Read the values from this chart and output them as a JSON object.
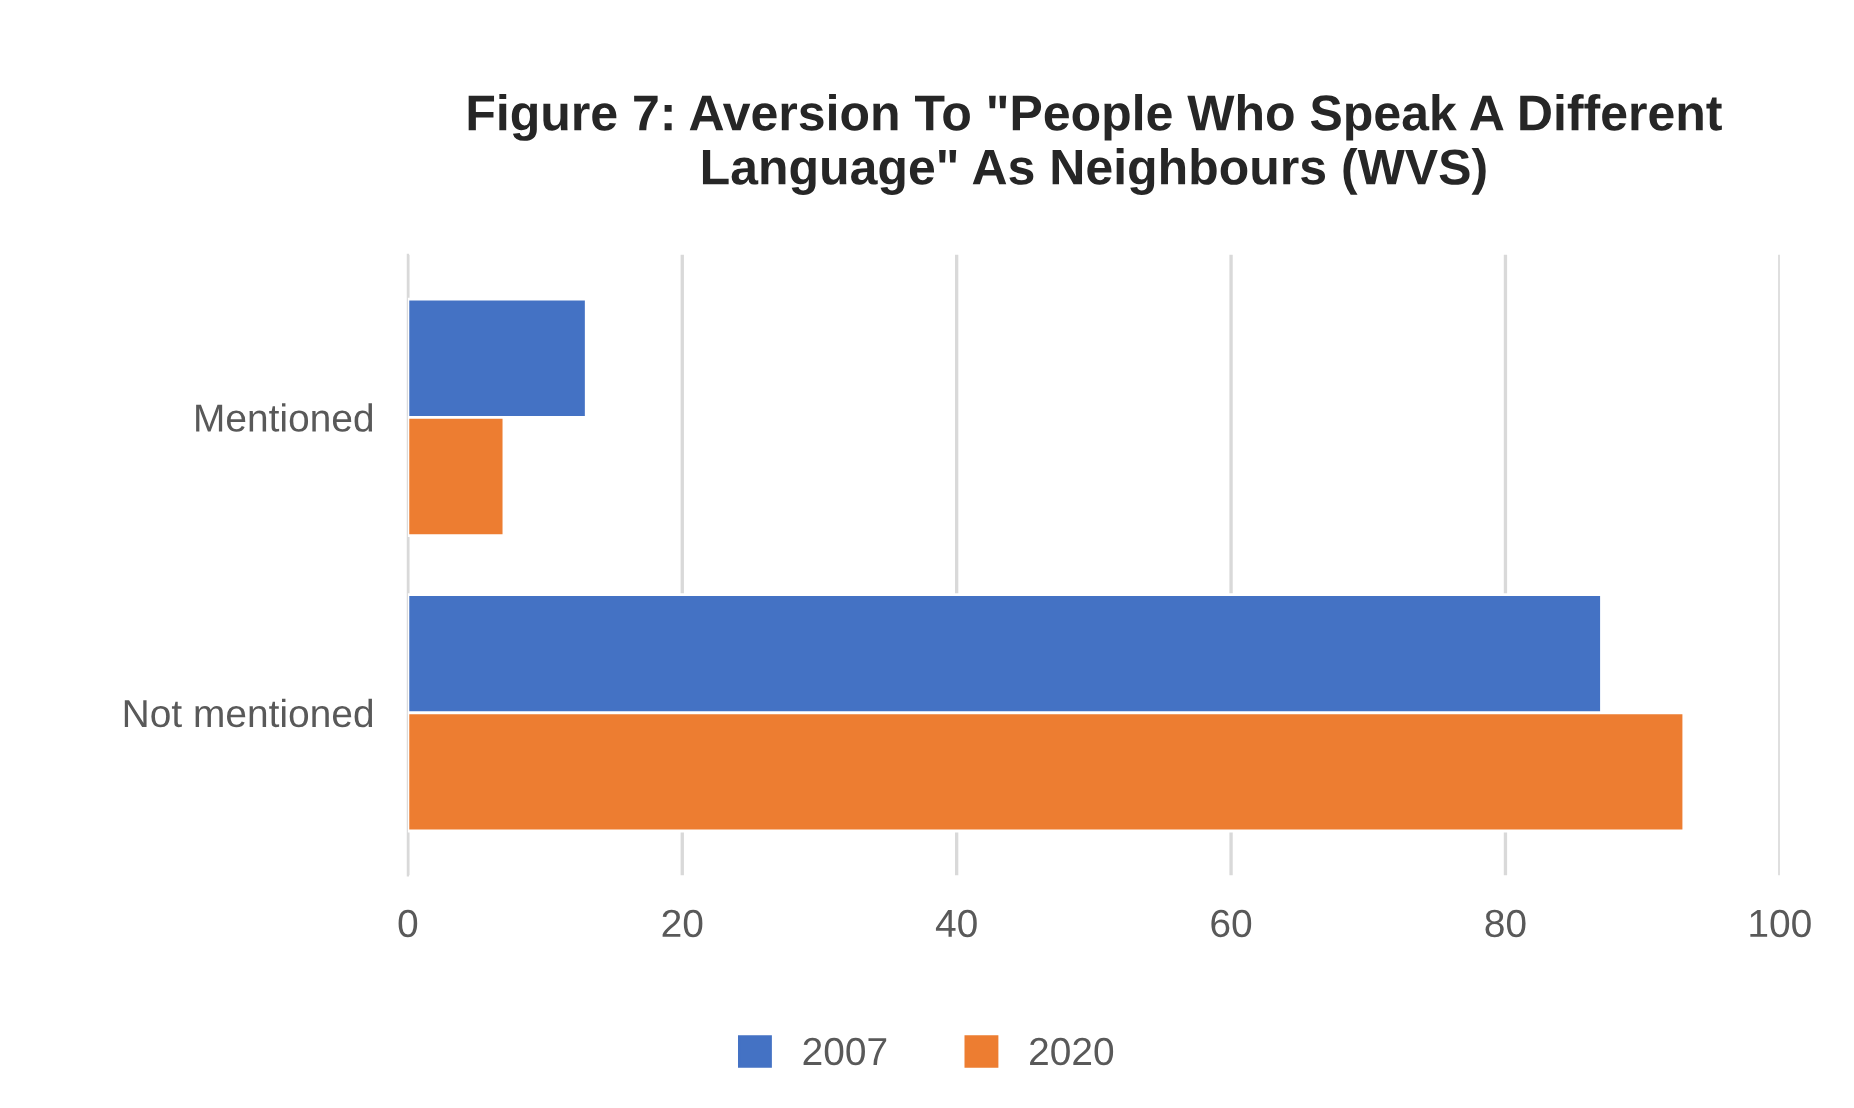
{
  "chart_data": {
    "type": "bar",
    "orientation": "horizontal",
    "title": "Figure 7: Aversion To \"People Who Speak A Different Language\" As Neighbours (WVS)",
    "categories": [
      "Mentioned",
      "Not mentioned"
    ],
    "series": [
      {
        "name": "2007",
        "color": "#4472c4",
        "values": [
          13,
          87
        ]
      },
      {
        "name": "2020",
        "color": "#ed7d31",
        "values": [
          7,
          93
        ]
      }
    ],
    "xlim": [
      0,
      100
    ],
    "xticks": [
      0,
      20,
      40,
      60,
      80,
      100
    ],
    "grid": "x",
    "legend": "bottom"
  }
}
